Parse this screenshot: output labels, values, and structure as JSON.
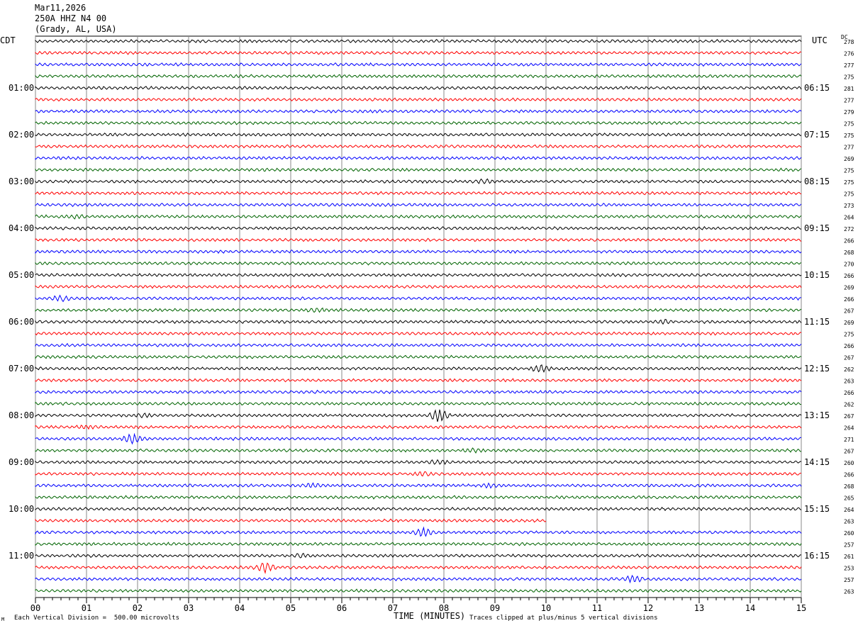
{
  "header": {
    "date": "Mar11,2026",
    "station": "250A HHZ N4 00",
    "location": "(Grady, AL, USA)"
  },
  "left_zone": "CDT",
  "right_zone": "UTC",
  "dc_label": "DC",
  "footer": {
    "scale_note": "Each Vertical Division =  500.00 microvolts",
    "clip_note": "Traces clipped at plus/minus 5 vertical divisions",
    "marker": "M"
  },
  "chart_data": {
    "type": "line",
    "title": "",
    "xlabel": "TIME (MINUTES)",
    "ylabel": "",
    "xlim": [
      0,
      15
    ],
    "x_ticks": [
      "00",
      "01",
      "02",
      "03",
      "04",
      "05",
      "06",
      "07",
      "08",
      "09",
      "10",
      "11",
      "12",
      "13",
      "14",
      "15"
    ],
    "grid": "vertical lines at each minute",
    "trace_colors": [
      "#000000",
      "#ff0000",
      "#0000ff",
      "#006400"
    ],
    "left_hour_labels": [
      {
        "row": 4,
        "text": "01:00"
      },
      {
        "row": 8,
        "text": "02:00"
      },
      {
        "row": 12,
        "text": "03:00"
      },
      {
        "row": 16,
        "text": "04:00"
      },
      {
        "row": 20,
        "text": "05:00"
      },
      {
        "row": 24,
        "text": "06:00"
      },
      {
        "row": 28,
        "text": "07:00"
      },
      {
        "row": 32,
        "text": "08:00"
      },
      {
        "row": 36,
        "text": "09:00"
      },
      {
        "row": 40,
        "text": "10:00"
      },
      {
        "row": 44,
        "text": "11:00"
      }
    ],
    "right_hour_labels": [
      {
        "row": 4,
        "text": "06:15"
      },
      {
        "row": 8,
        "text": "07:15"
      },
      {
        "row": 12,
        "text": "08:15"
      },
      {
        "row": 16,
        "text": "09:15"
      },
      {
        "row": 20,
        "text": "10:15"
      },
      {
        "row": 24,
        "text": "11:15"
      },
      {
        "row": 28,
        "text": "12:15"
      },
      {
        "row": 32,
        "text": "13:15"
      },
      {
        "row": 36,
        "text": "14:15"
      },
      {
        "row": 40,
        "text": "15:15"
      },
      {
        "row": 44,
        "text": "16:15"
      }
    ],
    "dc_values": [
      "278",
      "276",
      "277",
      "275",
      "281",
      "277",
      "279",
      "275",
      "275",
      "277",
      "269",
      "275",
      "275",
      "275",
      "273",
      "264",
      "272",
      "266",
      "268",
      "270",
      "266",
      "269",
      "266",
      "267",
      "269",
      "275",
      "266",
      "267",
      "262",
      "263",
      "266",
      "262",
      "267",
      "264",
      "271",
      "267",
      "260",
      "266",
      "268",
      "265",
      "264",
      "263",
      "260",
      "257",
      "261",
      "253",
      "257",
      "263"
    ],
    "rows": 48,
    "last_row_minutes": [
      15,
      15,
      15,
      15,
      15,
      15,
      15,
      15,
      15,
      15,
      15,
      15,
      15,
      15,
      15,
      15,
      15,
      15,
      15,
      15,
      15,
      15,
      15,
      15,
      15,
      15,
      15,
      15,
      15,
      15,
      15,
      15,
      15,
      15,
      15,
      15,
      15,
      15,
      15,
      15,
      15,
      10,
      15,
      15,
      15,
      15,
      15,
      15
    ],
    "events": [
      {
        "row": 12,
        "minute": 8.8,
        "amp": 2
      },
      {
        "row": 15,
        "minute": 0.8,
        "amp": 2
      },
      {
        "row": 22,
        "minute": 0.5,
        "amp": 3
      },
      {
        "row": 23,
        "minute": 5.5,
        "amp": 2
      },
      {
        "row": 24,
        "minute": 12.3,
        "amp": 2
      },
      {
        "row": 28,
        "minute": 9.9,
        "amp": 4
      },
      {
        "row": 32,
        "minute": 7.9,
        "amp": 8
      },
      {
        "row": 32,
        "minute": 2.1,
        "amp": 2
      },
      {
        "row": 33,
        "minute": 1.0,
        "amp": 2
      },
      {
        "row": 34,
        "minute": 1.9,
        "amp": 6
      },
      {
        "row": 35,
        "minute": 8.6,
        "amp": 2
      },
      {
        "row": 36,
        "minute": 7.9,
        "amp": 2
      },
      {
        "row": 37,
        "minute": 7.6,
        "amp": 2
      },
      {
        "row": 38,
        "minute": 8.9,
        "amp": 2
      },
      {
        "row": 38,
        "minute": 5.4,
        "amp": 2
      },
      {
        "row": 42,
        "minute": 7.6,
        "amp": 5
      },
      {
        "row": 44,
        "minute": 5.2,
        "amp": 2
      },
      {
        "row": 45,
        "minute": 4.5,
        "amp": 6
      },
      {
        "row": 46,
        "minute": 11.7,
        "amp": 4
      }
    ]
  }
}
